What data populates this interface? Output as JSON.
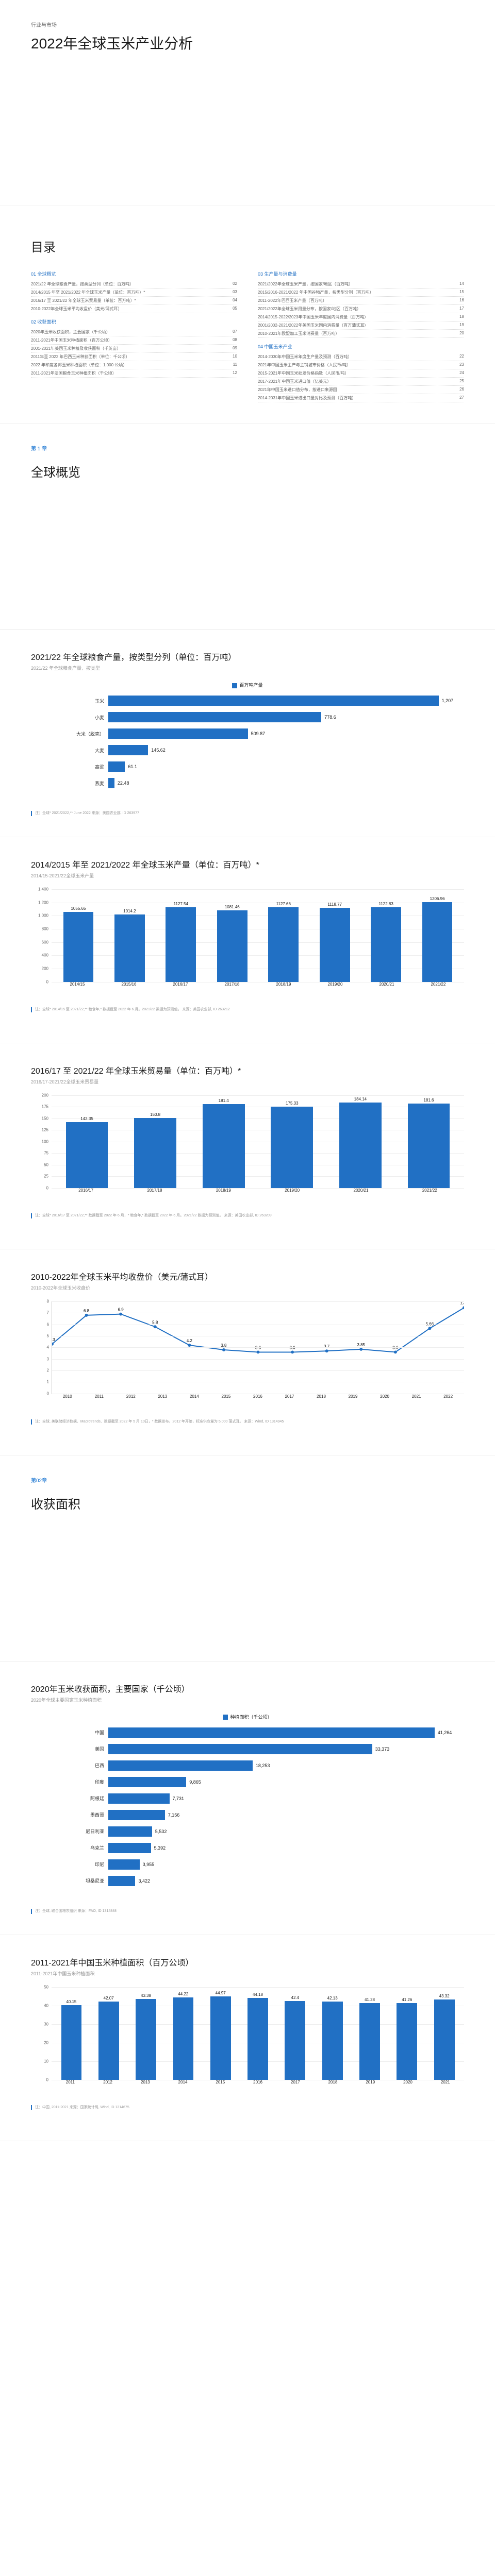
{
  "header": {
    "category": "行业与市场",
    "title": "2022年全球玉米产业分析"
  },
  "toc": {
    "title": "目录",
    "sections": [
      {
        "heading": "01 全球概览",
        "items": [
          {
            "label": "2021/22 年全球粮食产量，按类型分列（单位：百万吨）",
            "page": "02"
          },
          {
            "label": "2014/2015 年至 2021/2022 年全球玉米产量（单位：百万吨）*",
            "page": "03"
          },
          {
            "label": "2016/17 至 2021/22 年全球玉米贸易量（单位：百万吨）*",
            "page": "04"
          },
          {
            "label": "2010-2022年全球玉米平均收盘价（美元/蒲式耳）",
            "page": "05"
          }
        ]
      },
      {
        "heading": "02 收获面积",
        "items": [
          {
            "label": "2020年玉米收获面积，主要国家（千公顷）",
            "page": "07"
          },
          {
            "label": "2011-2021年中国玉米种植面积（百万公顷）",
            "page": "08"
          },
          {
            "label": "2001-2021年美国玉米种植及收获面积（千英亩）",
            "page": "09"
          },
          {
            "label": "2011年至 2022 年巴西玉米种获面积（单位：千公顷）",
            "page": "10"
          },
          {
            "label": "2022 年印度各邦玉米种植面积（单位：1,000 公顷）",
            "page": "11"
          },
          {
            "label": "2011-2021年法国粮食玉米种植面积（千公顷）",
            "page": "12"
          }
        ]
      },
      {
        "heading": "03 生产量与消费量",
        "items": [
          {
            "label": "2021/2022年全球玉米产量，按国家/地区（百万吨）",
            "page": "14"
          },
          {
            "label": "2015/2016-2021/2022 年中国谷物产量，按类型分列（百万吨）",
            "page": "15"
          },
          {
            "label": "2011-2022年巴西玉米产量（百万吨）",
            "page": "16"
          },
          {
            "label": "2021/2022年全球玉米用量分布，按国家/地区（百万吨）",
            "page": "17"
          },
          {
            "label": "2014/2015-2022/2023年中国玉米年度国内消费量（百万吨）",
            "page": "18"
          },
          {
            "label": "2001/2002-2021/2022年美国玉米国内消费量（百万蒲式耳）",
            "page": "19"
          },
          {
            "label": "2010-2021年欧盟加工玉米消费量（百万吨）",
            "page": "20"
          }
        ]
      },
      {
        "heading": "04 中国玉米产业",
        "items": [
          {
            "label": "2014-2030年中国玉米年度生产量及预测（百万吨）",
            "page": "22"
          },
          {
            "label": "2021年中国玉米主产与主销城市价格（人民币/吨）",
            "page": "23"
          },
          {
            "label": "2015-2021年中国玉米批发价格指数（人民币/吨）",
            "page": "24"
          },
          {
            "label": "2017-2021年中国玉米进口值（亿美元）",
            "page": "25"
          },
          {
            "label": "2021年中国玉米进口值分布，按进口来源国",
            "page": "26"
          },
          {
            "label": "2014-2031年中国玉米进出口量对比及预测（百万吨）",
            "page": "27"
          }
        ]
      }
    ]
  },
  "chapter1": {
    "label": "第 1 章",
    "title": "全球概览"
  },
  "chart1": {
    "title": "2021/22 年全球粮食产量，按类型分列（单位：百万吨）",
    "subtitle": "2021/22 年全球粮食产量，按类型",
    "legend": "百万吨产量",
    "max": 1300,
    "bars": [
      {
        "label": "玉米",
        "value": 1207
      },
      {
        "label": "小麦",
        "value": 778.6
      },
      {
        "label": "大米（脱壳）",
        "value": 509.87
      },
      {
        "label": "大麦",
        "value": 145.62
      },
      {
        "label": "高粱",
        "value": 61.1
      },
      {
        "label": "燕麦",
        "value": 22.48
      }
    ],
    "footnote": "注：全球* 2021/2022,** June 2022\n来源：美国农业部, ID 263977"
  },
  "chart2": {
    "title": "2014/2015 年至 2021/2022 年全球玉米产量（单位：百万吨）*",
    "subtitle": "2014/15-2021/22全球玉米产量",
    "ymax": 1400,
    "ystep": 200,
    "bars": [
      {
        "label": "2014/15",
        "value": 1055.65
      },
      {
        "label": "2015/16",
        "value": 1014.2
      },
      {
        "label": "2016/17",
        "value": 1127.54
      },
      {
        "label": "2017/18",
        "value": 1081.46
      },
      {
        "label": "2018/19",
        "value": 1127.66
      },
      {
        "label": "2019/20",
        "value": 1118.77
      },
      {
        "label": "2020/21",
        "value": 1122.83
      },
      {
        "label": "2021/22",
        "value": 1206.96
      }
    ],
    "footnote": "注：全球* 2014/15 至 2021/22,** 粮食年,* 数据截至 2022 年 6 月。2021/22 数据为预测值。\n来源：美国农业部, ID 263212"
  },
  "chart3": {
    "title": "2016/17 至 2021/22 年全球玉米贸易量（单位：百万吨）*",
    "subtitle": "2016/17-2021/22全球玉米贸易量",
    "ymax": 200,
    "ystep": 25,
    "bars": [
      {
        "label": "2016/17",
        "value": 142.35
      },
      {
        "label": "2017/18",
        "value": 150.8
      },
      {
        "label": "2018/19",
        "value": 181.4
      },
      {
        "label": "2019/20",
        "value": 175.33
      },
      {
        "label": "2020/21",
        "value": 184.14
      },
      {
        "label": "2021/22",
        "value": 181.6
      }
    ],
    "footnote": "注：全球* 2016/17 至 2021/22,** 数据截至 2022 年 6 月，* 粮食年,* 数据截至 2022 年 6 月。2021/22 数据为预测值。\n来源：美国农业部, ID 263209"
  },
  "chart4": {
    "title": "2010-2022年全球玉米平均收盘价（美元/蒲式耳）",
    "subtitle": "2010-2022年全球玉米收盘价",
    "ymax": 8,
    "ystep": 1,
    "points": [
      {
        "label": "2010",
        "value": 4.3
      },
      {
        "label": "2011",
        "value": 6.8
      },
      {
        "label": "2012",
        "value": 6.9
      },
      {
        "label": "2013",
        "value": 5.8
      },
      {
        "label": "2014",
        "value": 4.2
      },
      {
        "label": "2015",
        "value": 3.8
      },
      {
        "label": "2016",
        "value": 3.6
      },
      {
        "label": "2017",
        "value": 3.6
      },
      {
        "label": "2018",
        "value": 3.7
      },
      {
        "label": "2019",
        "value": 3.85
      },
      {
        "label": "2020",
        "value": 3.6
      },
      {
        "label": "2021",
        "value": 5.66
      },
      {
        "label": "2022",
        "value": 7.45
      }
    ],
    "footnote": "注：全球, 美联储经济数据、Macrotrends、数据截至 2022 年 5 月 10日，* 数据发布，2012 年开始，标准供应量为 5,000 蒲式耳。\n来源：Wind, ID 1314945"
  },
  "chapter2": {
    "label": "第02章",
    "title": "收获面积"
  },
  "chart5": {
    "title": "2020年玉米收获面积，主要国家（千公顷）",
    "subtitle": "2020年全球主要国家玉米种植面积",
    "legend": "种植面积（千公顷）",
    "max": 45000,
    "bars": [
      {
        "label": "中国",
        "value": 41264
      },
      {
        "label": "美国",
        "value": 33373
      },
      {
        "label": "巴西",
        "value": 18253
      },
      {
        "label": "印度",
        "value": 9865
      },
      {
        "label": "阿根廷",
        "value": 7731
      },
      {
        "label": "墨西哥",
        "value": 7156
      },
      {
        "label": "尼日利亚",
        "value": 5532
      },
      {
        "label": "乌克兰",
        "value": 5392
      },
      {
        "label": "印尼",
        "value": 3955
      },
      {
        "label": "坦桑尼亚",
        "value": 3422
      }
    ],
    "footnote": "注：全球, 联合国粮农组织\n来源：FAO, ID 1314848"
  },
  "chart6": {
    "title": "2011-2021年中国玉米种植面积（百万公顷）",
    "subtitle": "2011-2021年中国玉米种植面积",
    "ymax": 50,
    "ystep": 10,
    "bars": [
      {
        "label": "2011",
        "value": 40.15
      },
      {
        "label": "2012",
        "value": 42.07
      },
      {
        "label": "2013",
        "value": 43.38
      },
      {
        "label": "2014",
        "value": 44.22
      },
      {
        "label": "2015",
        "value": 44.97
      },
      {
        "label": "2016",
        "value": 44.18
      },
      {
        "label": "2017",
        "value": 42.4
      },
      {
        "label": "2018",
        "value": 42.13
      },
      {
        "label": "2019",
        "value": 41.28
      },
      {
        "label": "2020",
        "value": 41.26
      },
      {
        "label": "2021",
        "value": 43.32
      }
    ],
    "footnote": "注：中国, 2011-2021\n来源：国家统计局, Wind, ID 1314675"
  },
  "colors": {
    "primary": "#2170c4",
    "grid": "#eeeeee",
    "text": "#1a1a1a",
    "muted": "#999999"
  }
}
